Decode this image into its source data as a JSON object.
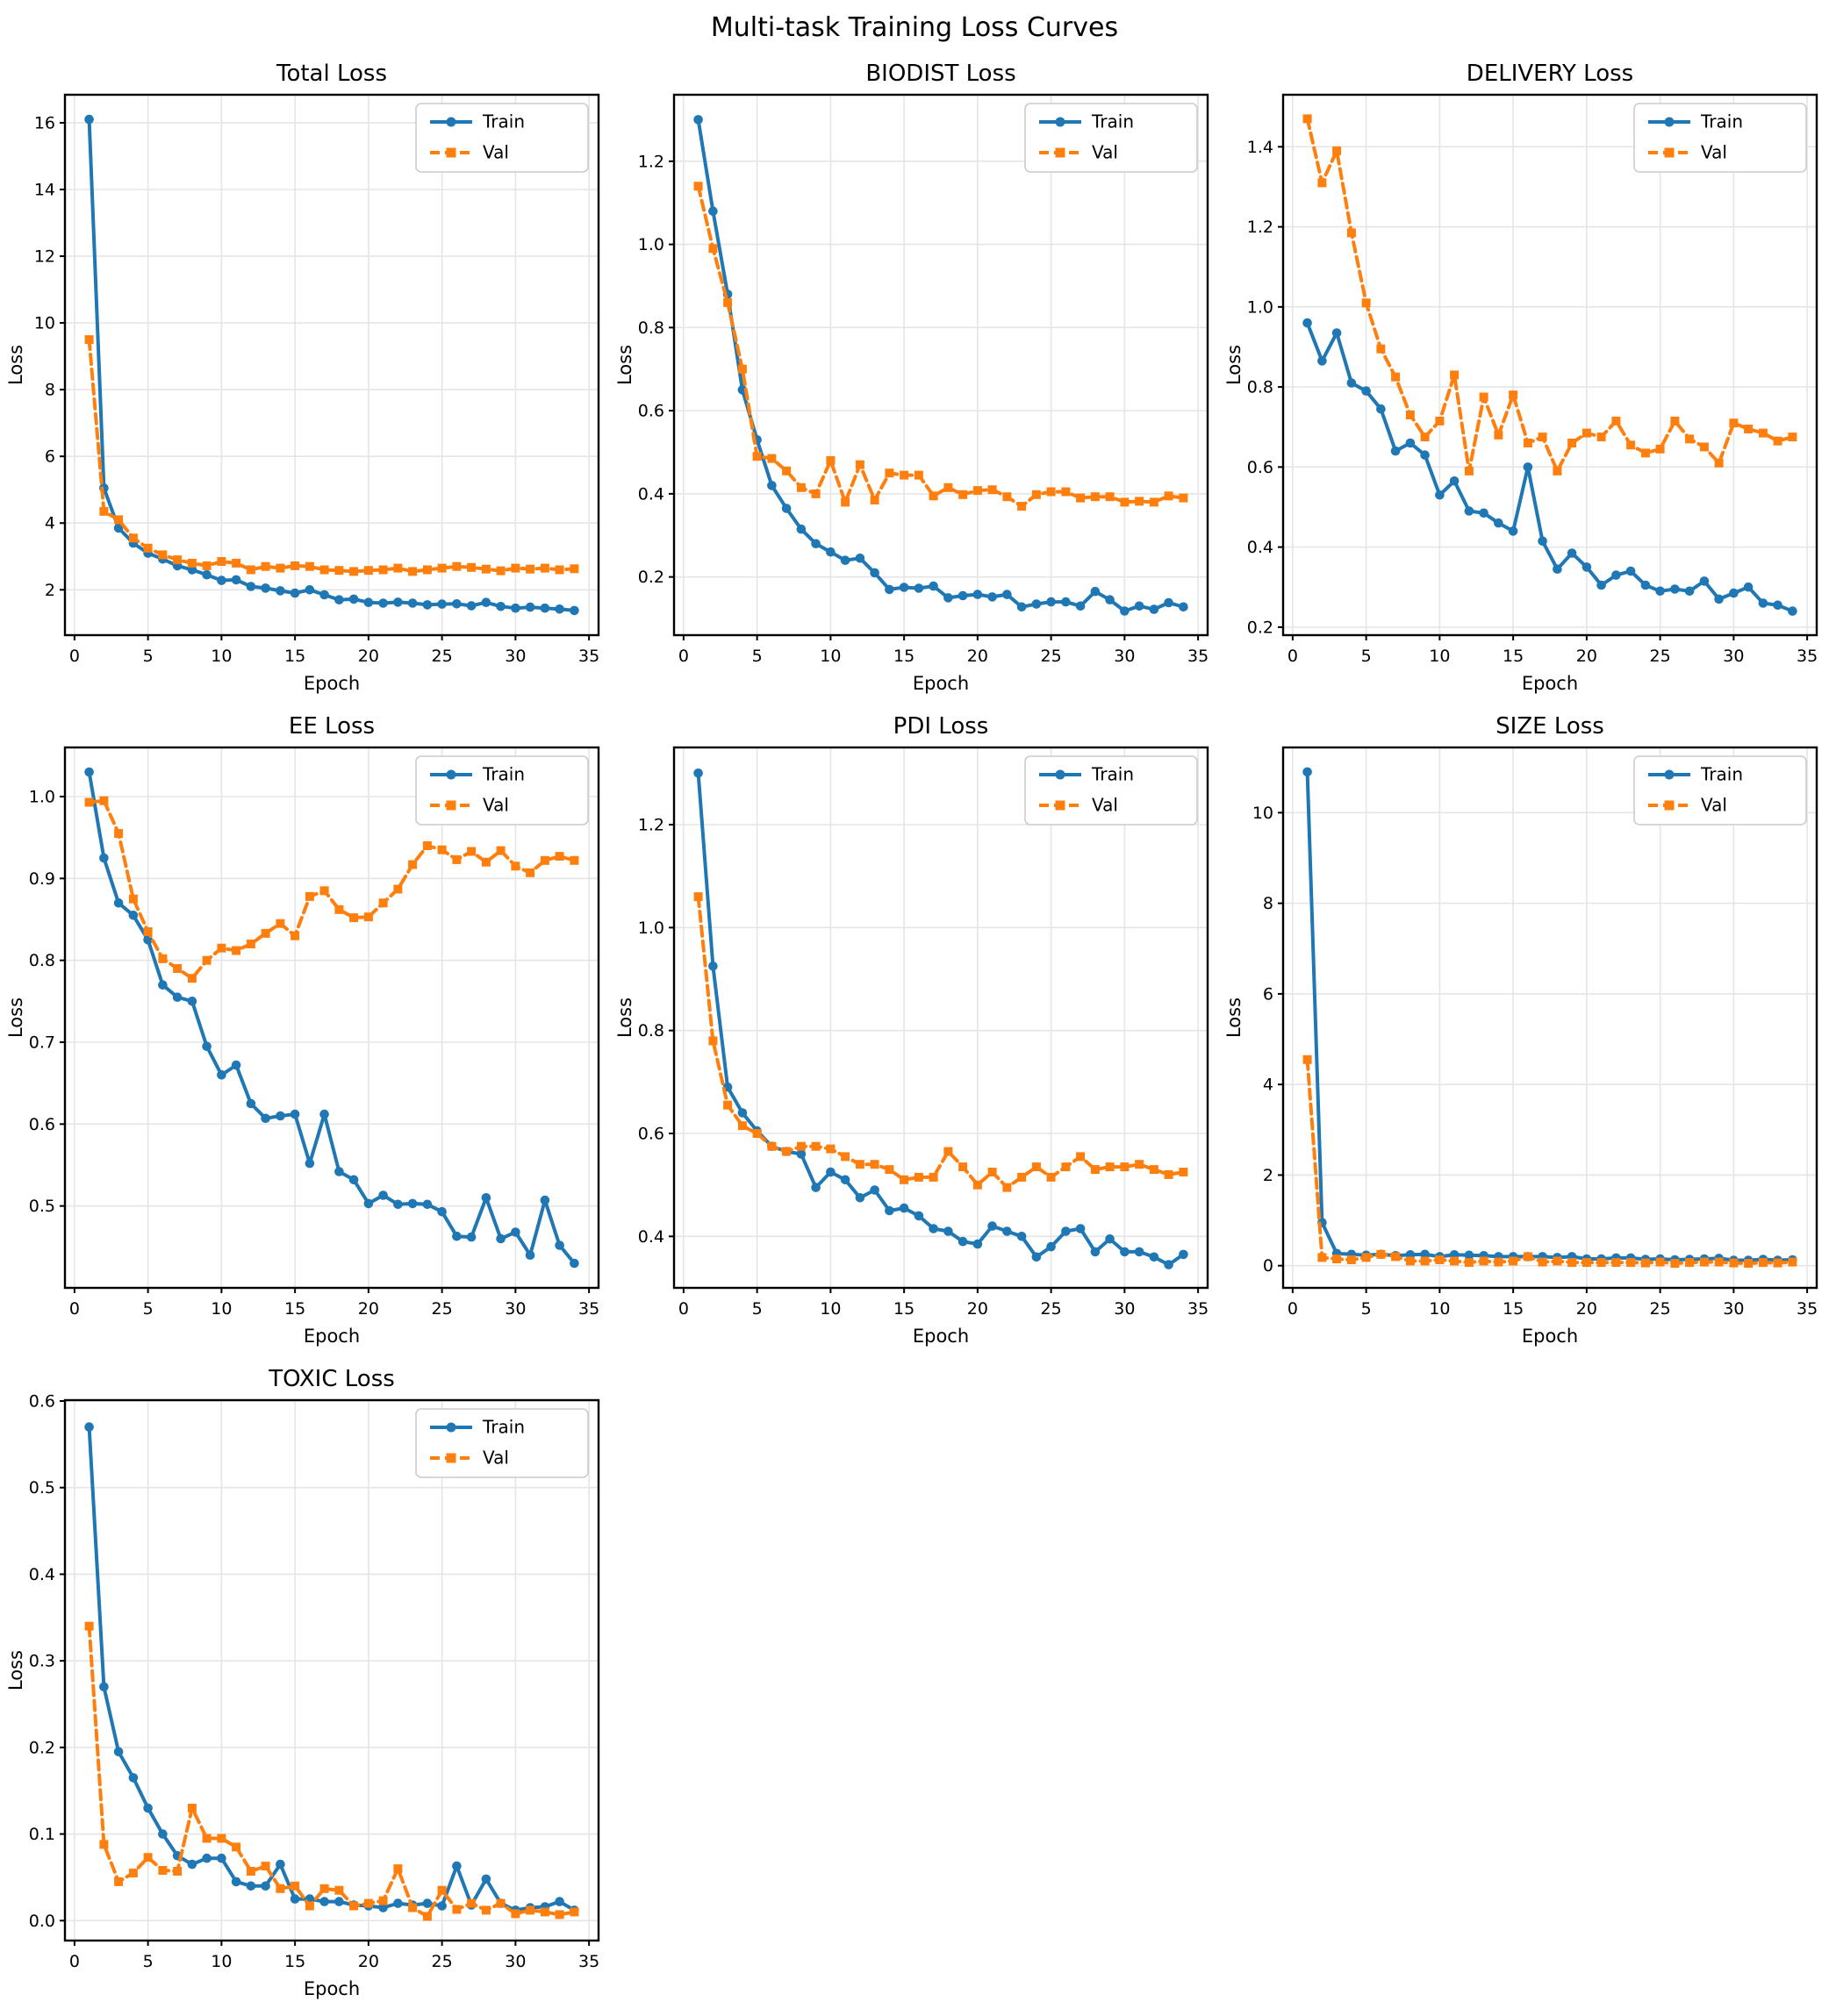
{
  "page": {
    "title": "Multi-task Training Loss Curves"
  },
  "legend": {
    "entries": [
      "Train",
      "Val"
    ],
    "position": "top-right"
  },
  "colors": {
    "train": "#1f77b4",
    "val": "#ff7f0e",
    "grid": "#e5e5e5",
    "spine": "#000000"
  },
  "chart_data": [
    {
      "type": "line",
      "title": "Total Loss",
      "xlabel": "Epoch",
      "ylabel": "Loss",
      "x": [
        1,
        2,
        3,
        4,
        5,
        6,
        7,
        8,
        9,
        10,
        11,
        12,
        13,
        14,
        15,
        16,
        17,
        18,
        19,
        20,
        21,
        22,
        23,
        24,
        25,
        26,
        27,
        28,
        29,
        30,
        31,
        32,
        33,
        34
      ],
      "series": [
        {
          "name": "Train",
          "color": "#1f77b4",
          "line": "solid",
          "marker": "circle",
          "values": [
            16.1,
            5.05,
            3.85,
            3.4,
            3.1,
            2.92,
            2.72,
            2.6,
            2.45,
            2.28,
            2.3,
            2.1,
            2.05,
            1.97,
            1.9,
            2.0,
            1.85,
            1.7,
            1.72,
            1.62,
            1.6,
            1.63,
            1.6,
            1.55,
            1.57,
            1.58,
            1.52,
            1.62,
            1.5,
            1.45,
            1.48,
            1.45,
            1.42,
            1.38
          ]
        },
        {
          "name": "Val",
          "color": "#ff7f0e",
          "line": "dashed",
          "marker": "square",
          "values": [
            9.5,
            4.35,
            4.1,
            3.55,
            3.25,
            3.05,
            2.9,
            2.8,
            2.72,
            2.85,
            2.8,
            2.6,
            2.7,
            2.65,
            2.72,
            2.7,
            2.6,
            2.58,
            2.55,
            2.58,
            2.6,
            2.65,
            2.55,
            2.6,
            2.65,
            2.7,
            2.67,
            2.62,
            2.57,
            2.65,
            2.62,
            2.65,
            2.6,
            2.63
          ]
        }
      ],
      "xlim": [
        -0.65,
        35.65
      ],
      "ylim": [
        0.64,
        16.84
      ],
      "xticks": [
        0,
        5,
        10,
        15,
        20,
        25,
        30,
        35
      ],
      "yticks": [
        2,
        4,
        6,
        8,
        10,
        12,
        14,
        16
      ],
      "grid": true,
      "legend_position": "top-right"
    },
    {
      "type": "line",
      "title": "BIODIST Loss",
      "xlabel": "Epoch",
      "ylabel": "Loss",
      "x": [
        1,
        2,
        3,
        4,
        5,
        6,
        7,
        8,
        9,
        10,
        11,
        12,
        13,
        14,
        15,
        16,
        17,
        18,
        19,
        20,
        21,
        22,
        23,
        24,
        25,
        26,
        27,
        28,
        29,
        30,
        31,
        32,
        33,
        34
      ],
      "series": [
        {
          "name": "Train",
          "color": "#1f77b4",
          "line": "solid",
          "marker": "circle",
          "values": [
            1.3,
            1.08,
            0.88,
            0.65,
            0.53,
            0.42,
            0.365,
            0.315,
            0.28,
            0.26,
            0.24,
            0.245,
            0.21,
            0.17,
            0.175,
            0.173,
            0.178,
            0.15,
            0.155,
            0.158,
            0.152,
            0.158,
            0.128,
            0.135,
            0.14,
            0.14,
            0.13,
            0.165,
            0.145,
            0.118,
            0.13,
            0.122,
            0.138,
            0.128
          ]
        },
        {
          "name": "Val",
          "color": "#ff7f0e",
          "line": "dashed",
          "marker": "square",
          "values": [
            1.14,
            0.99,
            0.86,
            0.7,
            0.49,
            0.485,
            0.455,
            0.415,
            0.4,
            0.48,
            0.38,
            0.47,
            0.385,
            0.45,
            0.445,
            0.445,
            0.395,
            0.415,
            0.398,
            0.408,
            0.41,
            0.393,
            0.37,
            0.398,
            0.405,
            0.405,
            0.39,
            0.393,
            0.393,
            0.38,
            0.382,
            0.38,
            0.395,
            0.39
          ]
        }
      ],
      "xlim": [
        -0.65,
        35.65
      ],
      "ylim": [
        0.06,
        1.36
      ],
      "xticks": [
        0,
        5,
        10,
        15,
        20,
        25,
        30,
        35
      ],
      "yticks": [
        0.2,
        0.4,
        0.6,
        0.8,
        1.0,
        1.2
      ],
      "grid": true,
      "legend_position": "top-right"
    },
    {
      "type": "line",
      "title": "DELIVERY Loss",
      "xlabel": "Epoch",
      "ylabel": "Loss",
      "x": [
        1,
        2,
        3,
        4,
        5,
        6,
        7,
        8,
        9,
        10,
        11,
        12,
        13,
        14,
        15,
        16,
        17,
        18,
        19,
        20,
        21,
        22,
        23,
        24,
        25,
        26,
        27,
        28,
        29,
        30,
        31,
        32,
        33,
        34
      ],
      "series": [
        {
          "name": "Train",
          "color": "#1f77b4",
          "line": "solid",
          "marker": "circle",
          "values": [
            0.96,
            0.865,
            0.935,
            0.81,
            0.79,
            0.745,
            0.64,
            0.66,
            0.63,
            0.53,
            0.565,
            0.49,
            0.485,
            0.46,
            0.44,
            0.6,
            0.415,
            0.345,
            0.385,
            0.35,
            0.305,
            0.33,
            0.34,
            0.305,
            0.29,
            0.295,
            0.29,
            0.315,
            0.27,
            0.285,
            0.3,
            0.26,
            0.255,
            0.24
          ]
        },
        {
          "name": "Val",
          "color": "#ff7f0e",
          "line": "dashed",
          "marker": "square",
          "values": [
            1.47,
            1.31,
            1.39,
            1.185,
            1.01,
            0.895,
            0.825,
            0.73,
            0.675,
            0.715,
            0.83,
            0.59,
            0.775,
            0.68,
            0.78,
            0.66,
            0.675,
            0.59,
            0.66,
            0.685,
            0.675,
            0.715,
            0.655,
            0.635,
            0.645,
            0.715,
            0.67,
            0.65,
            0.61,
            0.71,
            0.695,
            0.685,
            0.665,
            0.675
          ]
        }
      ],
      "xlim": [
        -0.65,
        35.65
      ],
      "ylim": [
        0.18,
        1.53
      ],
      "xticks": [
        0,
        5,
        10,
        15,
        20,
        25,
        30,
        35
      ],
      "yticks": [
        0.2,
        0.4,
        0.6,
        0.8,
        1.0,
        1.2,
        1.4
      ],
      "grid": true,
      "legend_position": "top-right"
    },
    {
      "type": "line",
      "title": "EE Loss",
      "xlabel": "Epoch",
      "ylabel": "Loss",
      "x": [
        1,
        2,
        3,
        4,
        5,
        6,
        7,
        8,
        9,
        10,
        11,
        12,
        13,
        14,
        15,
        16,
        17,
        18,
        19,
        20,
        21,
        22,
        23,
        24,
        25,
        26,
        27,
        28,
        29,
        30,
        31,
        32,
        33,
        34
      ],
      "series": [
        {
          "name": "Train",
          "color": "#1f77b4",
          "line": "solid",
          "marker": "circle",
          "values": [
            1.03,
            0.925,
            0.87,
            0.855,
            0.825,
            0.77,
            0.755,
            0.75,
            0.695,
            0.66,
            0.672,
            0.625,
            0.607,
            0.61,
            0.612,
            0.552,
            0.612,
            0.542,
            0.532,
            0.503,
            0.513,
            0.502,
            0.503,
            0.502,
            0.493,
            0.463,
            0.462,
            0.51,
            0.46,
            0.468,
            0.44,
            0.507,
            0.452,
            0.43
          ]
        },
        {
          "name": "Val",
          "color": "#ff7f0e",
          "line": "dashed",
          "marker": "square",
          "values": [
            0.993,
            0.995,
            0.955,
            0.875,
            0.835,
            0.802,
            0.79,
            0.778,
            0.8,
            0.815,
            0.812,
            0.82,
            0.833,
            0.845,
            0.83,
            0.878,
            0.885,
            0.862,
            0.852,
            0.853,
            0.87,
            0.887,
            0.917,
            0.94,
            0.935,
            0.923,
            0.933,
            0.92,
            0.934,
            0.915,
            0.907,
            0.922,
            0.927,
            0.922
          ]
        }
      ],
      "xlim": [
        -0.65,
        35.65
      ],
      "ylim": [
        0.4,
        1.06
      ],
      "xticks": [
        0,
        5,
        10,
        15,
        20,
        25,
        30,
        35
      ],
      "yticks": [
        0.5,
        0.6,
        0.7,
        0.8,
        0.9,
        1.0
      ],
      "grid": true,
      "legend_position": "top-right"
    },
    {
      "type": "line",
      "title": "PDI Loss",
      "xlabel": "Epoch",
      "ylabel": "Loss",
      "x": [
        1,
        2,
        3,
        4,
        5,
        6,
        7,
        8,
        9,
        10,
        11,
        12,
        13,
        14,
        15,
        16,
        17,
        18,
        19,
        20,
        21,
        22,
        23,
        24,
        25,
        26,
        27,
        28,
        29,
        30,
        31,
        32,
        33,
        34
      ],
      "series": [
        {
          "name": "Train",
          "color": "#1f77b4",
          "line": "solid",
          "marker": "circle",
          "values": [
            1.3,
            0.925,
            0.69,
            0.64,
            0.605,
            0.575,
            0.565,
            0.56,
            0.495,
            0.525,
            0.51,
            0.475,
            0.49,
            0.45,
            0.455,
            0.44,
            0.415,
            0.41,
            0.39,
            0.385,
            0.42,
            0.41,
            0.4,
            0.36,
            0.38,
            0.41,
            0.415,
            0.37,
            0.395,
            0.37,
            0.37,
            0.36,
            0.345,
            0.365
          ]
        },
        {
          "name": "Val",
          "color": "#ff7f0e",
          "line": "dashed",
          "marker": "square",
          "values": [
            1.06,
            0.78,
            0.655,
            0.615,
            0.6,
            0.575,
            0.565,
            0.575,
            0.575,
            0.57,
            0.555,
            0.54,
            0.54,
            0.53,
            0.51,
            0.515,
            0.515,
            0.565,
            0.535,
            0.5,
            0.525,
            0.495,
            0.515,
            0.535,
            0.515,
            0.535,
            0.555,
            0.53,
            0.535,
            0.535,
            0.54,
            0.53,
            0.52,
            0.525
          ]
        }
      ],
      "xlim": [
        -0.65,
        35.65
      ],
      "ylim": [
        0.3,
        1.35
      ],
      "xticks": [
        0,
        5,
        10,
        15,
        20,
        25,
        30,
        35
      ],
      "yticks": [
        0.4,
        0.6,
        0.8,
        1.0,
        1.2
      ],
      "grid": true,
      "legend_position": "top-right"
    },
    {
      "type": "line",
      "title": "SIZE Loss",
      "xlabel": "Epoch",
      "ylabel": "Loss",
      "x": [
        1,
        2,
        3,
        4,
        5,
        6,
        7,
        8,
        9,
        10,
        11,
        12,
        13,
        14,
        15,
        16,
        17,
        18,
        19,
        20,
        21,
        22,
        23,
        24,
        25,
        26,
        27,
        28,
        29,
        30,
        31,
        32,
        33,
        34
      ],
      "series": [
        {
          "name": "Train",
          "color": "#1f77b4",
          "line": "solid",
          "marker": "circle",
          "values": [
            10.9,
            0.95,
            0.27,
            0.25,
            0.23,
            0.25,
            0.22,
            0.24,
            0.25,
            0.2,
            0.24,
            0.23,
            0.22,
            0.2,
            0.2,
            0.2,
            0.2,
            0.18,
            0.2,
            0.15,
            0.15,
            0.17,
            0.17,
            0.14,
            0.15,
            0.13,
            0.14,
            0.15,
            0.16,
            0.12,
            0.12,
            0.14,
            0.12,
            0.13
          ]
        },
        {
          "name": "Val",
          "color": "#ff7f0e",
          "line": "dashed",
          "marker": "square",
          "values": [
            4.55,
            0.18,
            0.15,
            0.13,
            0.18,
            0.25,
            0.2,
            0.1,
            0.1,
            0.13,
            0.1,
            0.07,
            0.1,
            0.08,
            0.1,
            0.2,
            0.08,
            0.1,
            0.07,
            0.07,
            0.07,
            0.07,
            0.07,
            0.06,
            0.08,
            0.05,
            0.07,
            0.08,
            0.08,
            0.06,
            0.05,
            0.07,
            0.06,
            0.08
          ]
        }
      ],
      "xlim": [
        -0.65,
        35.65
      ],
      "ylim": [
        -0.49,
        11.44
      ],
      "xticks": [
        0,
        5,
        10,
        15,
        20,
        25,
        30,
        35
      ],
      "yticks": [
        0,
        2,
        4,
        6,
        8,
        10
      ],
      "grid": true,
      "legend_position": "top-right"
    },
    {
      "type": "line",
      "title": "TOXIC Loss",
      "xlabel": "Epoch",
      "ylabel": "Loss",
      "x": [
        1,
        2,
        3,
        4,
        5,
        6,
        7,
        8,
        9,
        10,
        11,
        12,
        13,
        14,
        15,
        16,
        17,
        18,
        19,
        20,
        21,
        22,
        23,
        24,
        25,
        26,
        27,
        28,
        29,
        30,
        31,
        32,
        33,
        34
      ],
      "series": [
        {
          "name": "Train",
          "color": "#1f77b4",
          "line": "solid",
          "marker": "circle",
          "values": [
            0.57,
            0.27,
            0.195,
            0.165,
            0.13,
            0.1,
            0.075,
            0.065,
            0.072,
            0.072,
            0.045,
            0.04,
            0.04,
            0.065,
            0.025,
            0.025,
            0.022,
            0.022,
            0.018,
            0.017,
            0.015,
            0.02,
            0.018,
            0.02,
            0.017,
            0.063,
            0.018,
            0.048,
            0.02,
            0.012,
            0.015,
            0.016,
            0.022,
            0.012
          ]
        },
        {
          "name": "Val",
          "color": "#ff7f0e",
          "line": "dashed",
          "marker": "square",
          "values": [
            0.34,
            0.088,
            0.045,
            0.055,
            0.073,
            0.058,
            0.057,
            0.13,
            0.095,
            0.095,
            0.085,
            0.057,
            0.063,
            0.037,
            0.04,
            0.017,
            0.037,
            0.035,
            0.017,
            0.02,
            0.023,
            0.06,
            0.015,
            0.005,
            0.035,
            0.013,
            0.02,
            0.012,
            0.02,
            0.008,
            0.012,
            0.01,
            0.007,
            0.01
          ]
        }
      ],
      "xlim": [
        -0.65,
        35.65
      ],
      "ylim": [
        -0.023,
        0.601
      ],
      "xticks": [
        0,
        5,
        10,
        15,
        20,
        25,
        30,
        35
      ],
      "yticks": [
        0.0,
        0.1,
        0.2,
        0.3,
        0.4,
        0.5,
        0.6
      ],
      "grid": true,
      "legend_position": "top-right"
    }
  ]
}
